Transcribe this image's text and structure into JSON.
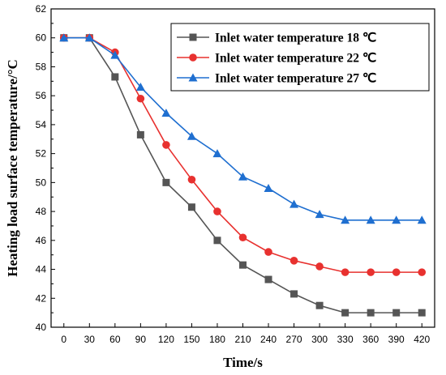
{
  "chart_data": {
    "type": "line",
    "xlabel": "Time/s",
    "ylabel": "Heating load surface temperature/°C",
    "xlim": [
      -15,
      435
    ],
    "ylim": [
      40,
      62
    ],
    "x_ticks": [
      0,
      30,
      60,
      90,
      120,
      150,
      180,
      210,
      240,
      270,
      300,
      330,
      360,
      390,
      420
    ],
    "y_ticks": [
      40,
      42,
      44,
      46,
      48,
      50,
      52,
      54,
      56,
      58,
      60,
      62
    ],
    "x": [
      0,
      30,
      60,
      90,
      120,
      150,
      180,
      210,
      240,
      270,
      300,
      330,
      360,
      390,
      420
    ],
    "grid": false,
    "legend_position": "top-right",
    "series": [
      {
        "name": "Inlet water temperature 18 ℃",
        "color": "#555555",
        "marker": "square",
        "values": [
          60,
          60,
          57.3,
          53.3,
          50.0,
          48.3,
          46.0,
          44.3,
          43.3,
          42.3,
          41.5,
          41.0,
          41.0,
          41.0,
          41.0
        ]
      },
      {
        "name": "Inlet water temperature 22 ℃",
        "color": "#e8312f",
        "marker": "circle",
        "values": [
          60,
          60,
          59.0,
          55.8,
          52.6,
          50.2,
          48.0,
          46.2,
          45.2,
          44.6,
          44.2,
          43.8,
          43.8,
          43.8,
          43.8
        ]
      },
      {
        "name": "Inlet water temperature 27 ℃",
        "color": "#1f6fd0",
        "marker": "triangle",
        "values": [
          60,
          60,
          58.8,
          56.6,
          54.8,
          53.2,
          52.0,
          50.4,
          49.6,
          48.5,
          47.8,
          47.4,
          47.4,
          47.4,
          47.4
        ]
      }
    ]
  }
}
